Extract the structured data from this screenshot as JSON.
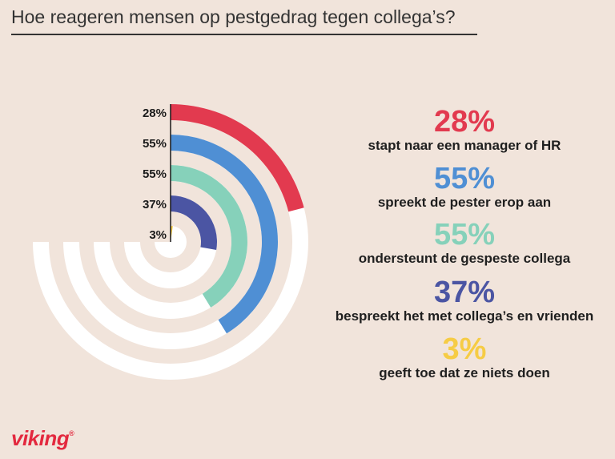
{
  "title": "Hoe reageren mensen op pestgedrag tegen collega’s?",
  "brand": {
    "name": "viking",
    "mark": "®",
    "color": "#e3283e"
  },
  "chart_data": {
    "type": "radial-bar",
    "series": [
      {
        "value": 28,
        "label": "28%",
        "description": "stapt naar een manager of HR",
        "color": "#e23a4f"
      },
      {
        "value": 55,
        "label": "55%",
        "description": "spreekt de pester erop aan",
        "color": "#4f8fd4"
      },
      {
        "value": 55,
        "label": "55%",
        "description": "ondersteunt de gespeste collega",
        "color": "#86d1ba"
      },
      {
        "value": 37,
        "label": "37%",
        "description": "bespreekt het met collega’s en vrienden",
        "color": "#4b55a3"
      },
      {
        "value": 3,
        "label": "3%",
        "description": "geeft toe dat ze niets doen",
        "color": "#f6cc45"
      }
    ],
    "scale_max_percent": 100,
    "track_sweep_degrees": 270,
    "track_color": "#ffffff"
  }
}
